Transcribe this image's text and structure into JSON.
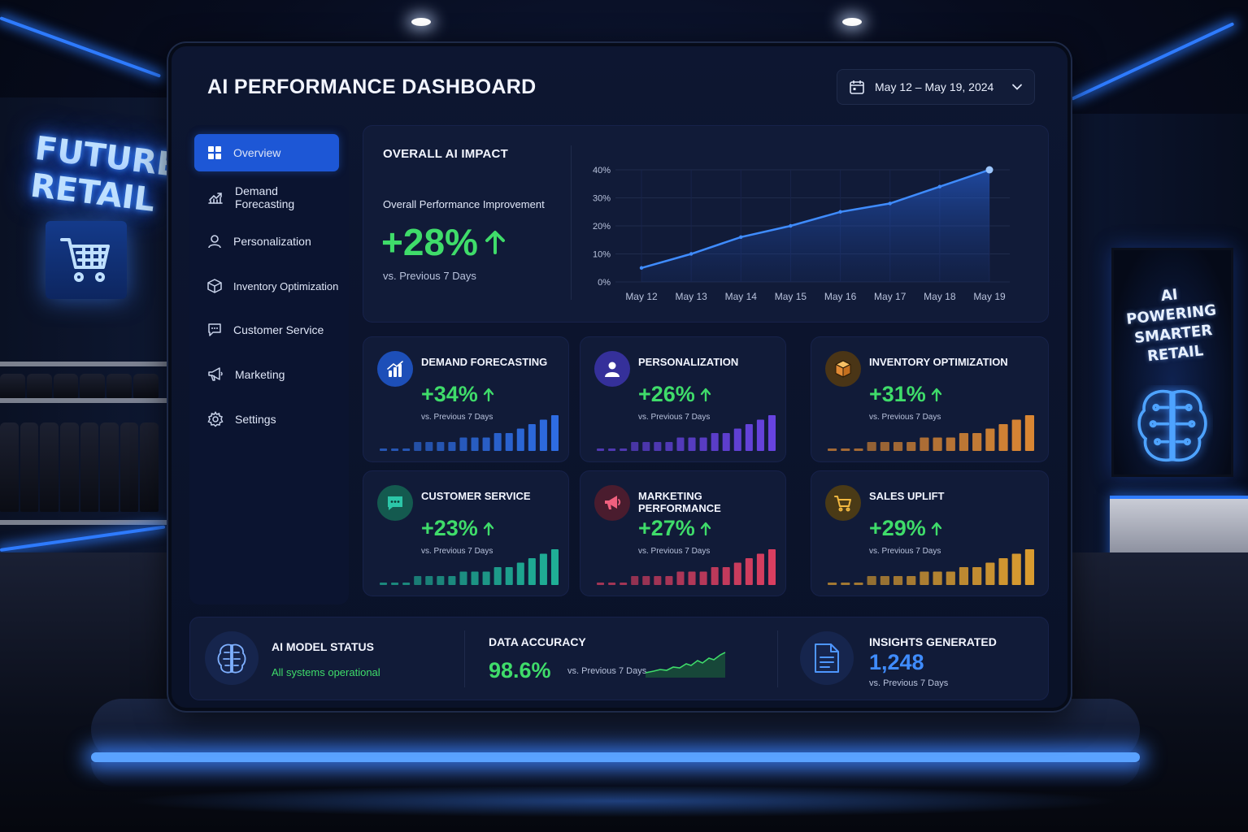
{
  "background": {
    "store_sign_text": "FUTURE RETAIL",
    "screen_sign_text": "AI POWERING SMARTER RETAIL"
  },
  "header": {
    "title": "AI PERFORMANCE DASHBOARD",
    "date_range": "May 12 – May 19, 2024"
  },
  "sidebar": {
    "items": [
      {
        "label": "Overview",
        "icon": "grid-icon",
        "active": true
      },
      {
        "label": "Demand Forecasting",
        "icon": "trend-chart-icon",
        "active": false
      },
      {
        "label": "Personalization",
        "icon": "user-icon",
        "active": false
      },
      {
        "label": "Inventory Optimization",
        "icon": "box-icon",
        "active": false
      },
      {
        "label": "Customer Service",
        "icon": "chat-icon",
        "active": false
      },
      {
        "label": "Marketing",
        "icon": "megaphone-icon",
        "active": false
      },
      {
        "label": "Settings",
        "icon": "gear-icon",
        "active": false
      }
    ]
  },
  "impact": {
    "title": "OVERALL AI IMPACT",
    "subtitle": "Overall Performance Improvement",
    "value": "+28%",
    "comparison": "vs. Previous 7 Days"
  },
  "chart_data": {
    "type": "area",
    "x": [
      "May 12",
      "May 13",
      "May 14",
      "May 15",
      "May 16",
      "May 17",
      "May 18",
      "May 19"
    ],
    "y": [
      5,
      10,
      16,
      20,
      25,
      28,
      34,
      40
    ],
    "y_tick_labels": [
      "0%",
      "10%",
      "20%",
      "30%",
      "40%"
    ],
    "ylim": [
      0,
      40
    ],
    "grid": true,
    "color": "#3f8cff"
  },
  "kpis": [
    {
      "title": "DEMAND FORECASTING",
      "value": "+34%",
      "comparison": "vs. Previous 7 Days",
      "icon": "bar-chart-icon",
      "color": "#2f6fe8",
      "icon_bg": "#1d4fb8",
      "bars": [
        1,
        1,
        1,
        2,
        2,
        2,
        2,
        3,
        3,
        3,
        4,
        4,
        5,
        6,
        7,
        8
      ]
    },
    {
      "title": "PERSONALIZATION",
      "value": "+26%",
      "comparison": "vs. Previous 7 Days",
      "icon": "user-icon",
      "color": "#6a45e6",
      "icon_bg": "#35309a",
      "bars": [
        1,
        1,
        1,
        2,
        2,
        2,
        2,
        3,
        3,
        3,
        4,
        4,
        5,
        6,
        7,
        8
      ]
    },
    {
      "title": "INVENTORY OPTIMIZATION",
      "value": "+31%",
      "comparison": "vs. Previous 7 Days",
      "icon": "box-icon",
      "color": "#e08a34",
      "icon_bg": "#4a3516",
      "bars": [
        1,
        1,
        1,
        2,
        2,
        2,
        2,
        3,
        3,
        3,
        4,
        4,
        5,
        6,
        7,
        8
      ]
    },
    {
      "title": "CUSTOMER SERVICE",
      "value": "+23%",
      "comparison": "vs. Previous 7 Days",
      "icon": "chat-icon",
      "color": "#20b59a",
      "icon_bg": "#145a4f",
      "bars": [
        1,
        1,
        1,
        2,
        2,
        2,
        2,
        3,
        3,
        3,
        4,
        4,
        5,
        6,
        7,
        8
      ]
    },
    {
      "title": "MARKETING PERFORMANCE",
      "value": "+27%",
      "comparison": "vs. Previous 7 Days",
      "icon": "megaphone-icon",
      "color": "#e04062",
      "icon_bg": "#4a1c2e",
      "bars": [
        1,
        1,
        1,
        2,
        2,
        2,
        2,
        3,
        3,
        3,
        4,
        4,
        5,
        6,
        7,
        8
      ]
    },
    {
      "title": "SALES UPLIFT",
      "value": "+29%",
      "comparison": "vs. Previous 7 Days",
      "icon": "cart-icon",
      "color": "#e0a030",
      "icon_bg": "#4a3a16",
      "bars": [
        1,
        1,
        1,
        2,
        2,
        2,
        2,
        3,
        3,
        3,
        4,
        4,
        5,
        6,
        7,
        8
      ]
    }
  ],
  "status": {
    "model_label": "AI MODEL STATUS",
    "model_status": "All systems operational",
    "accuracy_label": "DATA ACCURACY",
    "accuracy_value": "98.6%",
    "accuracy_comparison": "vs. Previous 7 Days",
    "insights_label": "INSIGHTS GENERATED",
    "insights_value": "1,248",
    "insights_comparison": "vs. Previous 7 Days"
  },
  "colors": {
    "accent": "#1d57d6",
    "positive": "#3fdc6a",
    "insights": "#3f8cff"
  }
}
